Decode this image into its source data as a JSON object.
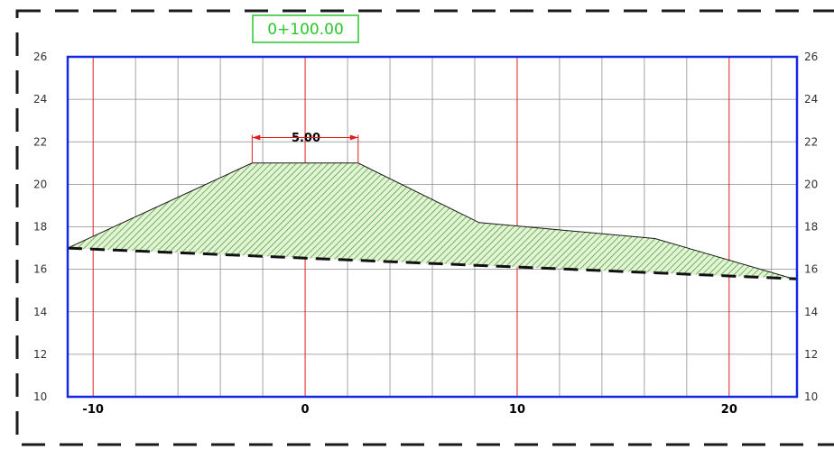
{
  "station_label": "0+100.00",
  "dimension_label": "5.00",
  "colors": {
    "frame": "#1a1a1a",
    "plot_border": "#1428e6",
    "grid_minor": "#8c8c8c",
    "grid_major": "#e01e1e",
    "fill_hatch": "#3a9e2a",
    "fill_bg": "#e4f2d6",
    "station_text": "#2bc62b",
    "dimension_line": "#e01e1e"
  },
  "chart_data": {
    "type": "cross-section",
    "x_range": [
      -11.2,
      23.2
    ],
    "y_range": [
      10,
      26
    ],
    "y_ticks": [
      26,
      24,
      22,
      20,
      18,
      16,
      14,
      12,
      10
    ],
    "x_major_ticks": [
      -10,
      0,
      10,
      20
    ],
    "x_tick_labels": [
      "-10",
      "0",
      "10",
      "20"
    ],
    "design_profile": [
      [
        -11.2,
        17.0
      ],
      [
        -2.5,
        21.0
      ],
      [
        2.5,
        21.0
      ],
      [
        8.2,
        18.2
      ],
      [
        16.5,
        17.45
      ],
      [
        23.2,
        15.5
      ]
    ],
    "ground_profile": [
      [
        -11.2,
        17.0
      ],
      [
        23.2,
        15.55
      ]
    ],
    "dimension": {
      "x_start": -2.5,
      "x_end": 2.5,
      "y": 22.2,
      "value": "5.00"
    }
  }
}
